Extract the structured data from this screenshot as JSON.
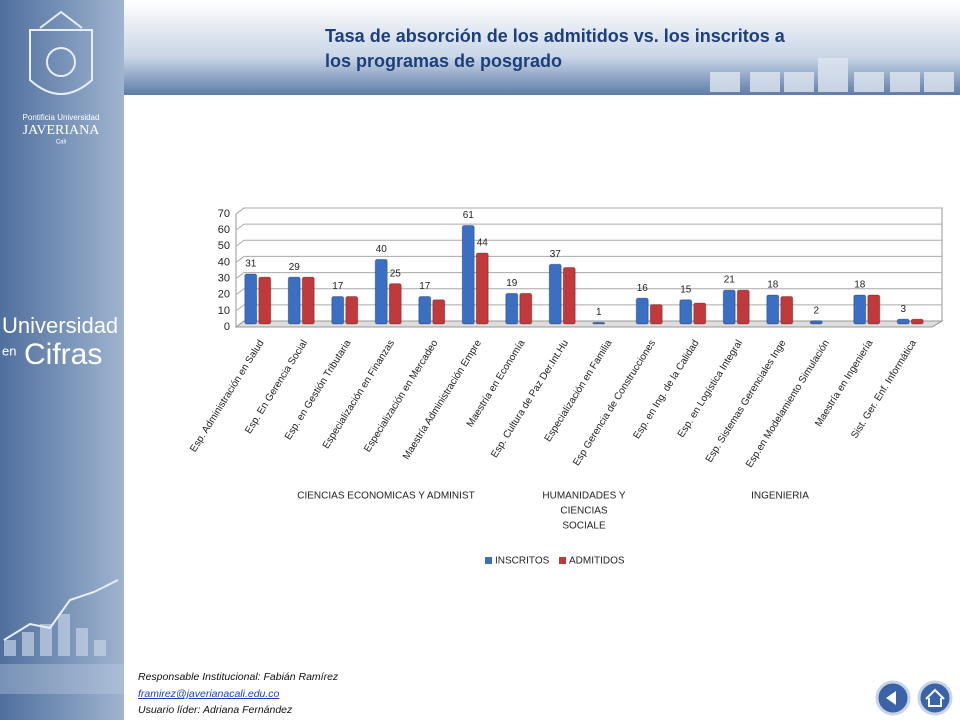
{
  "header": {
    "title_line1": "Tasa de absorción de los admitidos vs. los inscritos a",
    "title_line2": "los programas de posgrado"
  },
  "sidebar": {
    "logo_line1": "Pontificia Universidad",
    "logo_line2": "JAVERIANA",
    "logo_line3": "Cali",
    "brand_line1": "Universidad",
    "brand_line2": "en",
    "brand_line3": "Cifras"
  },
  "footer": {
    "responsible": "Responsable Institucional: Fabián Ramírez",
    "email": "framirez@javerianacali.edu.co",
    "leader": "Usuario líder: Adriana Fernández"
  },
  "chart_data": {
    "type": "bar",
    "categories": [
      "Esp. Administración en Salud",
      "Esp. En  Gerencia Social",
      "Esp. en Gestión Tributaria",
      "Especialización en Finanzas",
      "Especialización en Mercadeo",
      "Maestría  Administración Empre",
      "Maestría en Economía",
      "Esp. Cultura de Paz Der.Int.Hu",
      "Especialización en Familia",
      "Esp Gerencia de Construcciones",
      "Esp. en Ing. de la Calidad",
      "Esp. en Logística Integral",
      "Esp. Sistemas Gerenciales Inge",
      "Esp.en Modelamiento Simulación",
      "Maestría en Ingeniería",
      "Sist. Ger.  Enf. Informática"
    ],
    "series": [
      {
        "name": "INSCRITOS",
        "color": "#3a6fc4",
        "values": [
          31,
          29,
          17,
          40,
          17,
          61,
          19,
          37,
          1,
          16,
          15,
          21,
          18,
          2,
          18,
          3
        ]
      },
      {
        "name": "ADMITIDOS",
        "color": "#c0393b",
        "values": [
          29,
          29,
          17,
          25,
          15,
          44,
          19,
          35,
          0,
          12,
          13,
          21,
          17,
          0,
          18,
          3
        ],
        "value_labels": [
          null,
          null,
          null,
          "25",
          null,
          "44",
          null,
          null,
          null,
          null,
          null,
          null,
          null,
          null,
          null,
          null
        ]
      }
    ],
    "groups": [
      {
        "lines": [
          "CIENCIAS ECONOMICAS Y ADMINIST"
        ]
      },
      {
        "lines": [
          "HUMANIDADES Y",
          "CIENCIAS",
          "SOCIALE"
        ]
      },
      {
        "lines": [
          "INGENIERIA"
        ]
      }
    ],
    "ylim": [
      0,
      70
    ],
    "yticks": [
      0,
      10,
      20,
      30,
      40,
      50,
      60,
      70
    ],
    "grid": true
  }
}
